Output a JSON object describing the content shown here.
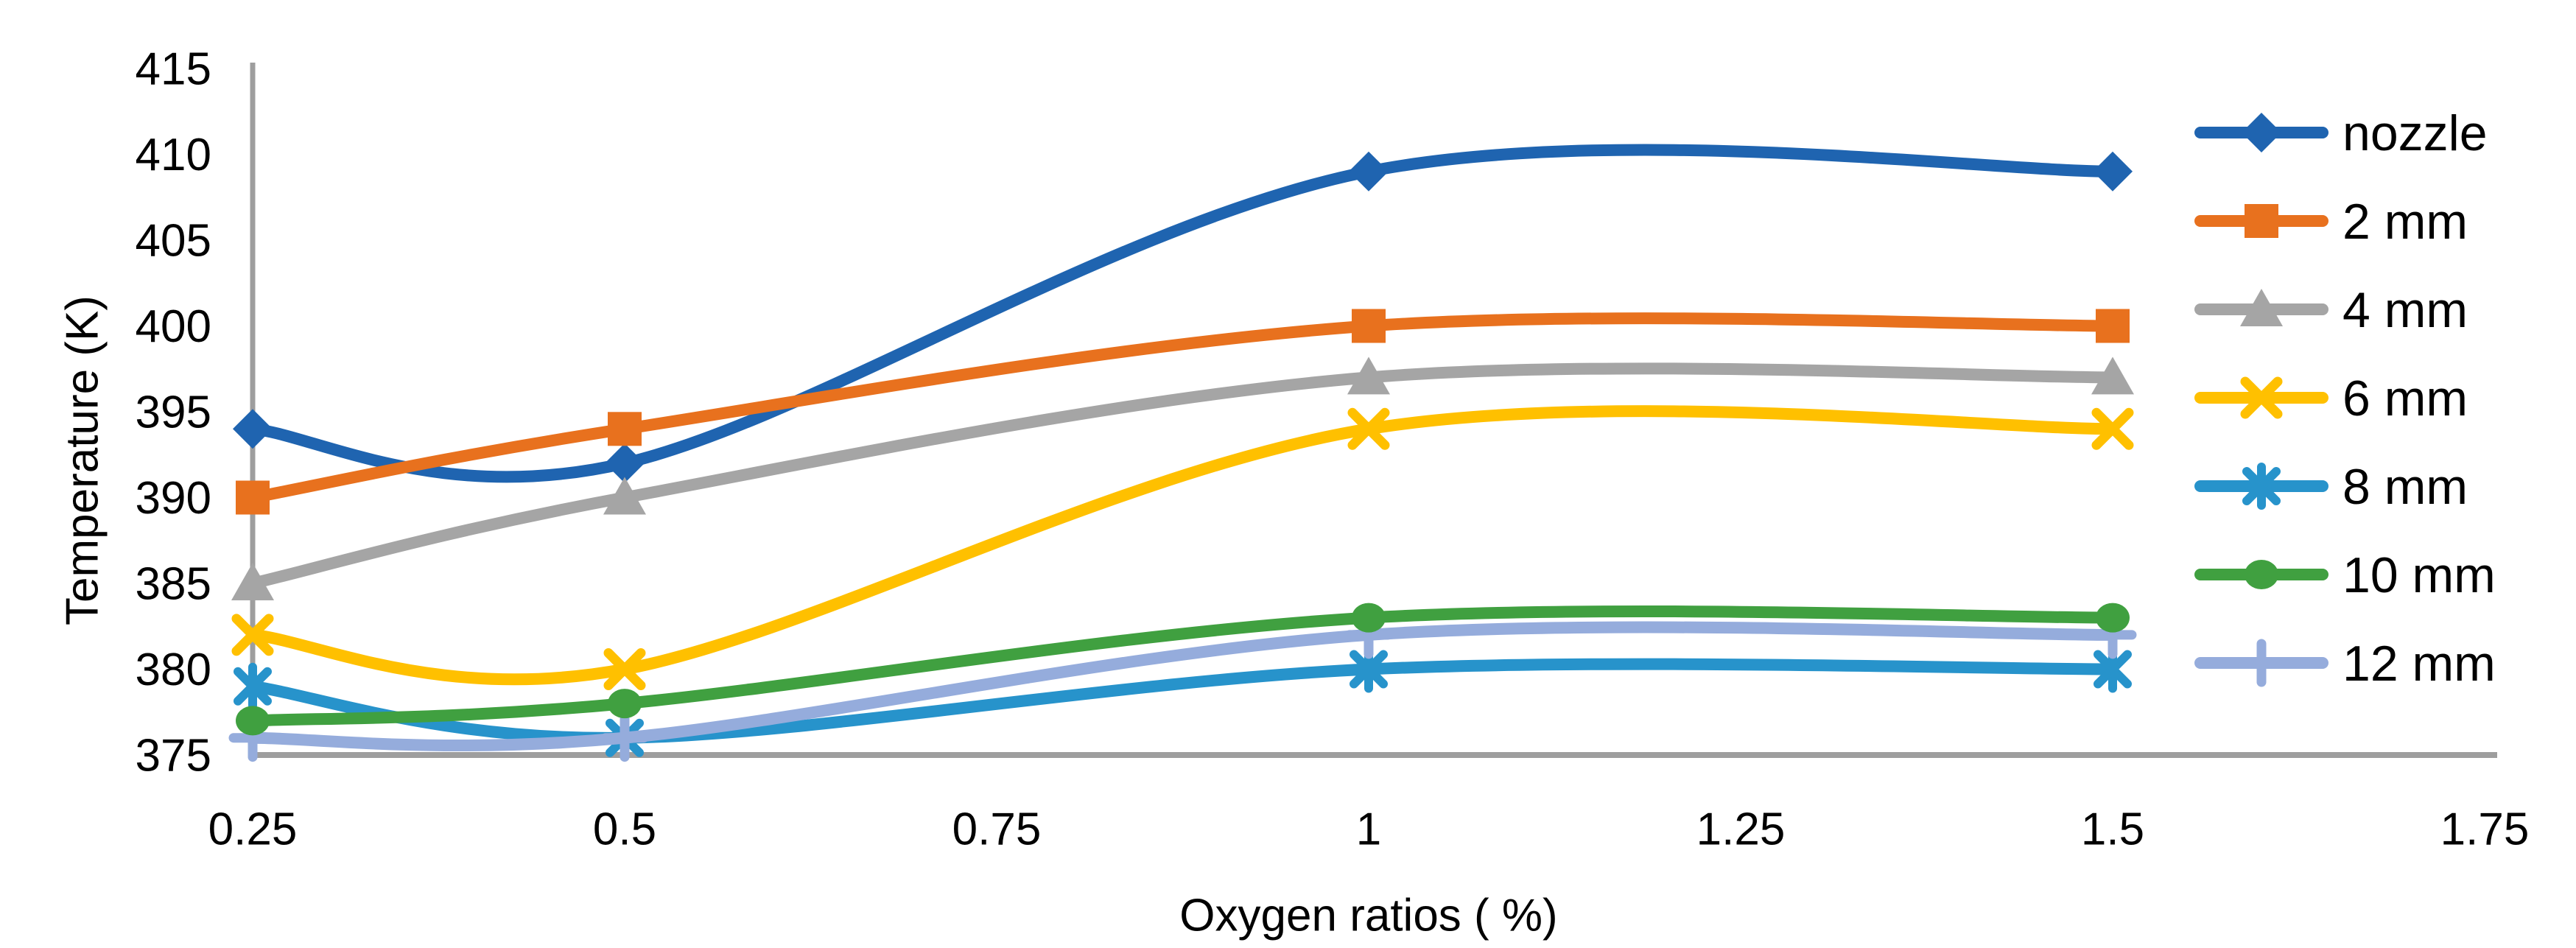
{
  "chart_data": {
    "type": "line",
    "smooth": true,
    "title": "",
    "xlabel": "Oxygen ratios ( %)",
    "ylabel": "Temperature (K)",
    "xlim": [
      0.25,
      1.75
    ],
    "ylim": [
      375,
      415
    ],
    "grid": false,
    "legend_position": "right",
    "x": [
      0.25,
      0.5,
      1,
      1.5
    ],
    "x_tick_labels": [
      "0.25",
      "0.5",
      "0.75",
      "1",
      "1.25",
      "1.5",
      "1.75"
    ],
    "y_tick_labels": [
      "375",
      "380",
      "385",
      "390",
      "395",
      "400",
      "405",
      "410",
      "415"
    ],
    "series": [
      {
        "name": "nozzle",
        "marker": "diamond",
        "color": "#1F64B0",
        "values": [
          394,
          392,
          409,
          409
        ]
      },
      {
        "name": "2 mm",
        "marker": "square",
        "color": "#E8711E",
        "values": [
          390,
          394,
          400,
          400
        ]
      },
      {
        "name": "4 mm",
        "marker": "triangle",
        "color": "#A5A5A5",
        "values": [
          385,
          390,
          397,
          397
        ]
      },
      {
        "name": "6 mm",
        "marker": "x",
        "color": "#FFC000",
        "values": [
          382,
          380,
          394,
          394
        ]
      },
      {
        "name": "8 mm",
        "marker": "asterisk",
        "color": "#2793CB",
        "values": [
          379,
          376,
          380,
          380
        ]
      },
      {
        "name": "10 mm",
        "marker": "circle",
        "color": "#40A040",
        "values": [
          377,
          378,
          383,
          383
        ]
      },
      {
        "name": "12 mm",
        "marker": "plus",
        "color": "#95ACDC",
        "values": [
          376,
          376,
          382,
          382
        ]
      }
    ],
    "axis_color": "#9E9E9E",
    "text_color": "#000000"
  }
}
